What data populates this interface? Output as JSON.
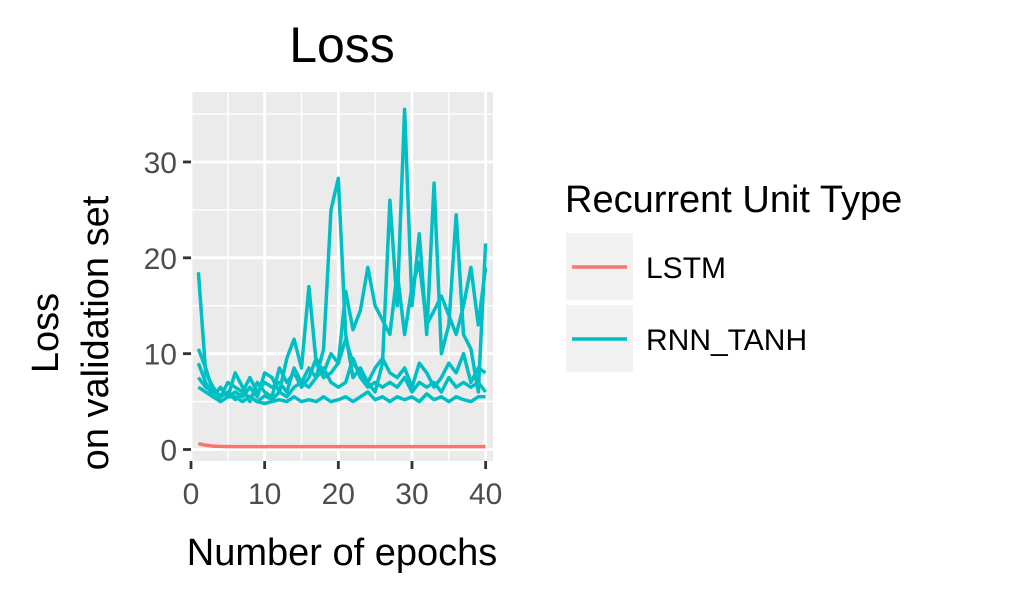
{
  "chart_data": {
    "type": "line",
    "title": "Loss",
    "xlabel": "Number of epochs",
    "ylabel": [
      "Loss",
      "on validation set"
    ],
    "xlim": [
      0,
      41
    ],
    "ylim": [
      -1.2,
      37.3
    ],
    "x_ticks": [
      0,
      10,
      20,
      30,
      40
    ],
    "y_ticks": [
      0,
      10,
      20,
      30
    ],
    "x_minor": [
      5,
      15,
      25,
      35
    ],
    "y_minor": [
      5,
      15,
      25,
      35
    ],
    "grid": true,
    "legend": {
      "title": "Recurrent Unit Type",
      "position": "right",
      "entries": [
        {
          "label": "LSTM",
          "color": "#F8766D"
        },
        {
          "label": "RNN_TANH",
          "color": "#00BFC4"
        }
      ]
    },
    "series": [
      {
        "group": "LSTM",
        "color": "#F8766D",
        "x": [
          1,
          2,
          3,
          4,
          5,
          6,
          7,
          8,
          9,
          10,
          11,
          12,
          13,
          14,
          15,
          16,
          17,
          18,
          19,
          20,
          21,
          22,
          23,
          24,
          25,
          26,
          27,
          28,
          29,
          30,
          31,
          32,
          33,
          34,
          35,
          36,
          37,
          38,
          39,
          40
        ],
        "y": [
          0.6,
          0.45,
          0.35,
          0.32,
          0.31,
          0.3,
          0.3,
          0.3,
          0.3,
          0.3,
          0.3,
          0.3,
          0.3,
          0.3,
          0.3,
          0.3,
          0.3,
          0.3,
          0.3,
          0.3,
          0.3,
          0.3,
          0.3,
          0.3,
          0.3,
          0.3,
          0.3,
          0.3,
          0.3,
          0.3,
          0.3,
          0.3,
          0.3,
          0.3,
          0.3,
          0.3,
          0.3,
          0.3,
          0.3,
          0.3
        ]
      },
      {
        "group": "RNN_TANH",
        "color": "#00BFC4",
        "x": [
          1,
          2,
          3,
          4,
          5,
          6,
          7,
          8,
          9,
          10,
          11,
          12,
          13,
          14,
          15,
          16,
          17,
          18,
          19,
          20,
          21,
          22,
          23,
          24,
          25,
          26,
          27,
          28,
          29,
          30,
          31,
          32,
          33,
          34,
          35,
          36,
          37,
          38,
          39,
          40
        ],
        "y": [
          18.5,
          8.0,
          6.5,
          5.5,
          6.0,
          5.2,
          5.8,
          5.5,
          5.0,
          5.6,
          5.2,
          6.0,
          5.5,
          6.5,
          7.0,
          8.5,
          7.5,
          10.5,
          25.0,
          28.3,
          12.0,
          7.5,
          8.5,
          7.0,
          6.0,
          9.0,
          26.0,
          15.0,
          35.5,
          15.0,
          22.5,
          12.0,
          27.8,
          10.0,
          13.0,
          24.5,
          12.0,
          10.5,
          6.0,
          21.5
        ]
      },
      {
        "group": "RNN_TANH",
        "color": "#00BFC4",
        "x": [
          1,
          2,
          3,
          4,
          5,
          6,
          7,
          8,
          9,
          10,
          11,
          12,
          13,
          14,
          15,
          16,
          17,
          18,
          19,
          20,
          21,
          22,
          23,
          24,
          25,
          26,
          27,
          28,
          29,
          30,
          31,
          32,
          33,
          34,
          35,
          36,
          37,
          38,
          39,
          40
        ],
        "y": [
          10.5,
          8.5,
          6.0,
          5.0,
          5.5,
          6.0,
          5.5,
          6.5,
          5.5,
          8.0,
          7.5,
          6.0,
          9.5,
          11.5,
          8.5,
          17.0,
          9.0,
          7.5,
          8.0,
          9.0,
          16.5,
          12.5,
          14.5,
          19.0,
          15.0,
          13.5,
          12.0,
          18.5,
          12.0,
          17.0,
          19.5,
          13.0,
          14.5,
          16.0,
          14.0,
          12.0,
          15.0,
          19.0,
          13.0,
          19.0
        ]
      },
      {
        "group": "RNN_TANH",
        "color": "#00BFC4",
        "x": [
          1,
          2,
          3,
          4,
          5,
          6,
          7,
          8,
          9,
          10,
          11,
          12,
          13,
          14,
          15,
          16,
          17,
          18,
          19,
          20,
          21,
          22,
          23,
          24,
          25,
          26,
          27,
          28,
          29,
          30,
          31,
          32,
          33,
          34,
          35,
          36,
          37,
          38,
          39,
          40
        ],
        "y": [
          9.0,
          7.0,
          5.5,
          6.5,
          5.5,
          8.0,
          6.5,
          5.0,
          7.0,
          6.0,
          5.5,
          8.5,
          7.0,
          8.0,
          6.5,
          7.5,
          9.5,
          8.0,
          10.0,
          9.0,
          11.5,
          9.0,
          8.0,
          7.0,
          8.5,
          9.5,
          8.0,
          7.5,
          8.5,
          6.5,
          9.0,
          8.0,
          6.5,
          7.5,
          9.0,
          8.0,
          10.0,
          7.0,
          8.5,
          8.0
        ]
      },
      {
        "group": "RNN_TANH",
        "color": "#00BFC4",
        "x": [
          1,
          2,
          3,
          4,
          5,
          6,
          7,
          8,
          9,
          10,
          11,
          12,
          13,
          14,
          15,
          16,
          17,
          18,
          19,
          20,
          21,
          22,
          23,
          24,
          25,
          26,
          27,
          28,
          29,
          30,
          31,
          32,
          33,
          34,
          35,
          36,
          37,
          38,
          39,
          40
        ],
        "y": [
          7.5,
          6.5,
          6.0,
          5.5,
          7.0,
          6.5,
          6.0,
          7.5,
          6.0,
          7.0,
          6.5,
          7.0,
          6.0,
          8.5,
          7.0,
          6.5,
          7.5,
          8.5,
          7.0,
          6.5,
          7.0,
          9.5,
          7.5,
          6.5,
          7.0,
          6.5,
          7.0,
          6.5,
          7.5,
          6.0,
          7.0,
          6.5,
          7.0,
          6.0,
          7.5,
          6.5,
          7.0,
          6.5,
          7.0,
          6.0
        ]
      },
      {
        "group": "RNN_TANH",
        "color": "#00BFC4",
        "x": [
          1,
          2,
          3,
          4,
          5,
          6,
          7,
          8,
          9,
          10,
          11,
          12,
          13,
          14,
          15,
          16,
          17,
          18,
          19,
          20,
          21,
          22,
          23,
          24,
          25,
          26,
          27,
          28,
          29,
          30,
          31,
          32,
          33,
          34,
          35,
          36,
          37,
          38,
          39,
          40
        ],
        "y": [
          6.5,
          6.0,
          5.5,
          5.0,
          5.5,
          5.5,
          5.0,
          5.5,
          5.0,
          4.8,
          5.0,
          5.2,
          5.0,
          5.5,
          5.0,
          5.2,
          5.0,
          5.5,
          5.0,
          5.2,
          5.5,
          5.0,
          5.5,
          6.0,
          5.2,
          5.5,
          5.0,
          5.5,
          5.2,
          5.5,
          5.0,
          5.8,
          5.2,
          5.5,
          5.0,
          5.5,
          5.2,
          5.0,
          5.5,
          5.5
        ]
      }
    ]
  }
}
